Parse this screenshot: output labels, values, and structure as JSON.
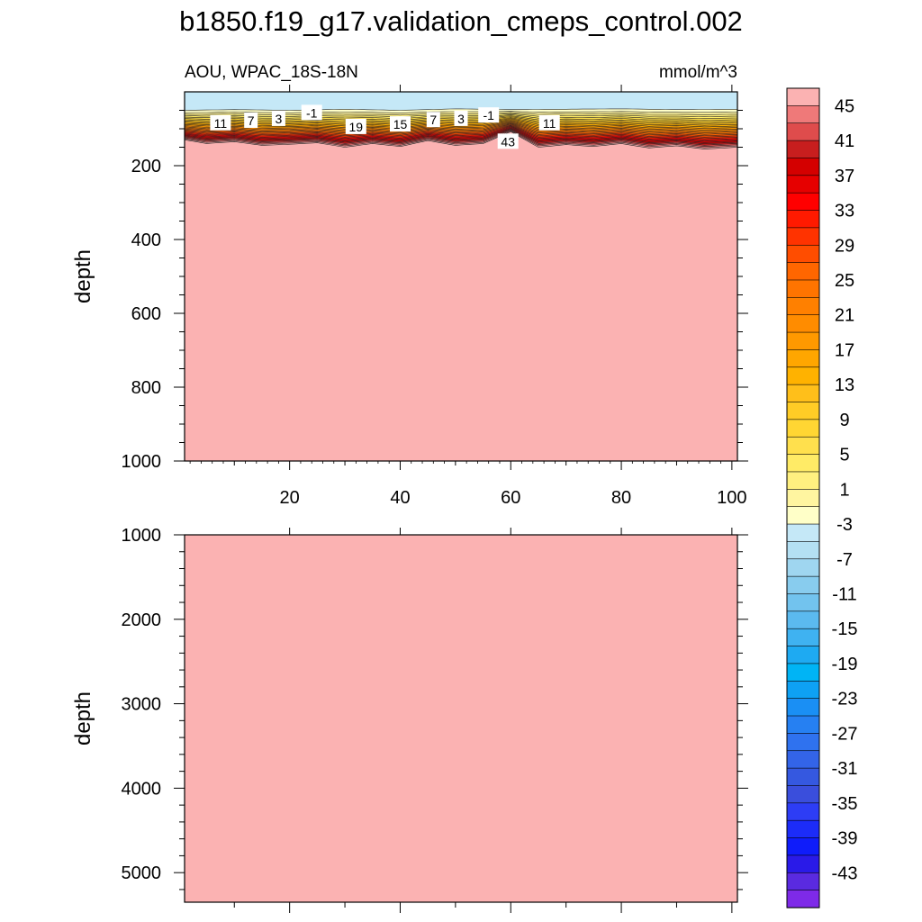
{
  "title": "b1850.f19_g17.validation_cmeps_control.002",
  "chart_data": [
    {
      "type": "heatmap",
      "panel": "upper",
      "left_string": "AOU, WPAC_18S-18N",
      "right_string": "mmol/m^3",
      "ylabel": "depth",
      "xlim": [
        1,
        101
      ],
      "ylim": [
        1000,
        0
      ],
      "x_ticks": [
        20,
        40,
        60,
        80,
        100
      ],
      "y_ticks": [
        200,
        400,
        600,
        800,
        1000
      ],
      "surface_value": -3,
      "deep_value": 47,
      "transition_top_depth": [
        [
          1,
          50
        ],
        [
          10,
          48
        ],
        [
          20,
          50
        ],
        [
          30,
          47
        ],
        [
          40,
          50
        ],
        [
          50,
          46
        ],
        [
          60,
          48
        ],
        [
          70,
          47
        ],
        [
          80,
          46
        ],
        [
          90,
          48
        ],
        [
          101,
          47
        ]
      ],
      "transition_bottom_depth": [
        [
          1,
          130
        ],
        [
          5,
          140
        ],
        [
          10,
          135
        ],
        [
          15,
          145
        ],
        [
          20,
          142
        ],
        [
          25,
          138
        ],
        [
          30,
          150
        ],
        [
          35,
          140
        ],
        [
          40,
          148
        ],
        [
          45,
          132
        ],
        [
          50,
          145
        ],
        [
          55,
          140
        ],
        [
          60,
          108
        ],
        [
          65,
          150
        ],
        [
          70,
          143
        ],
        [
          75,
          148
        ],
        [
          80,
          140
        ],
        [
          85,
          152
        ],
        [
          90,
          146
        ],
        [
          95,
          155
        ],
        [
          101,
          150
        ]
      ],
      "contour_labels": [
        {
          "text": "11",
          "x": 7.5,
          "y": 85
        },
        {
          "text": "7",
          "x": 13,
          "y": 78
        },
        {
          "text": "3",
          "x": 18,
          "y": 73
        },
        {
          "text": "-1",
          "x": 24,
          "y": 57
        },
        {
          "text": "19",
          "x": 32,
          "y": 95
        },
        {
          "text": "15",
          "x": 40,
          "y": 88
        },
        {
          "text": "7",
          "x": 46,
          "y": 76
        },
        {
          "text": "3",
          "x": 51,
          "y": 73
        },
        {
          "text": "-1",
          "x": 56,
          "y": 64
        },
        {
          "text": "43",
          "x": 59.5,
          "y": 135
        },
        {
          "text": "11",
          "x": 67,
          "y": 85
        }
      ]
    },
    {
      "type": "heatmap",
      "panel": "lower",
      "ylabel": "depth",
      "xlim": [
        1,
        101
      ],
      "ylim": [
        5350,
        1000
      ],
      "y_ticks": [
        1000,
        2000,
        3000,
        4000,
        5000
      ],
      "deep_value": 47
    }
  ],
  "colorbar": {
    "labels": [
      "45",
      "41",
      "37",
      "33",
      "29",
      "25",
      "21",
      "17",
      "13",
      "9",
      "5",
      "1",
      "-3",
      "-7",
      "-11",
      "-15",
      "-19",
      "-23",
      "-27",
      "-31",
      "-35",
      "-39",
      "-43"
    ],
    "colors": [
      "#fbb2b2",
      "#ef7979",
      "#df4c4c",
      "#c81e1e",
      "#d40000",
      "#e60000",
      "#ff0000",
      "#ff1a00",
      "#ff3300",
      "#ff4d00",
      "#ff6600",
      "#ff7400",
      "#ff8000",
      "#ff8c00",
      "#ff9900",
      "#ffa600",
      "#ffb200",
      "#ffbf1a",
      "#ffcc26",
      "#ffd633",
      "#ffe04d",
      "#ffeb66",
      "#fff080",
      "#fff5a0",
      "#ffffc8",
      "#c5e8f7",
      "#b4e0f3",
      "#9fd6f0",
      "#88ccee",
      "#72c3ee",
      "#5bbaef",
      "#3fb2f1",
      "#1eaaf2",
      "#00b4f5",
      "#0ea1f4",
      "#1a8ff4",
      "#2680f2",
      "#2f72ef",
      "#3364e8",
      "#3558e0",
      "#3a4edc",
      "#2d3df5",
      "#1c2cf8",
      "#0f1cfa",
      "#2a1ae8",
      "#5a2ae0",
      "#7e2ae8"
    ]
  }
}
